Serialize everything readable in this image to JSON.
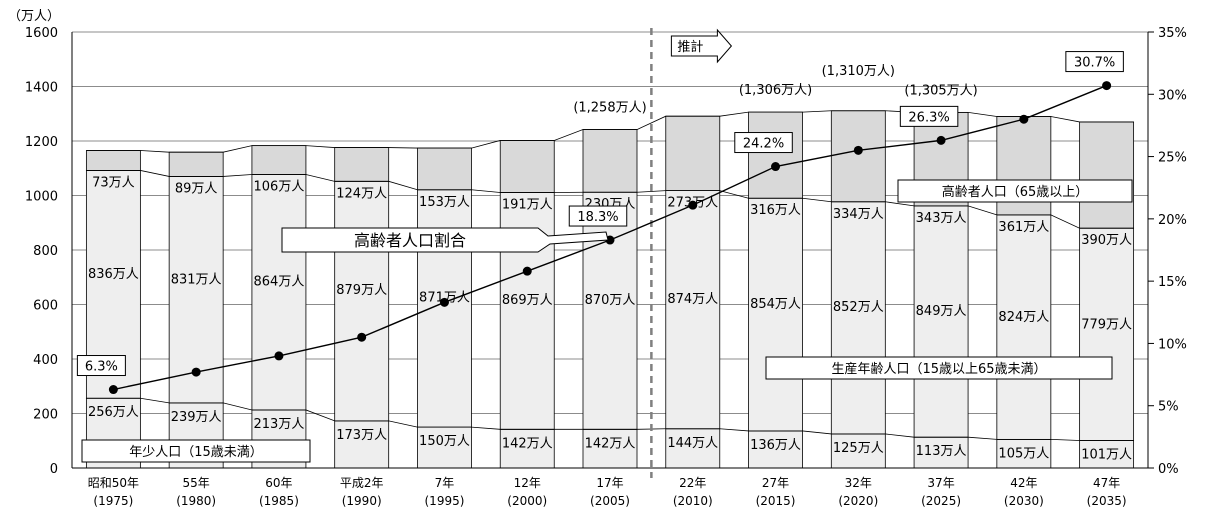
{
  "chart_data": {
    "type": "bar",
    "stacked": true,
    "y_unit_left": "（万人）",
    "ylim": [
      0,
      1600
    ],
    "yticks_left": [
      "0",
      "200",
      "400",
      "600",
      "800",
      "1000",
      "1200",
      "1400",
      "1600"
    ],
    "ylim_right": [
      0,
      35
    ],
    "yticks_right": [
      "0%",
      "5%",
      "10%",
      "15%",
      "20%",
      "25%",
      "30%",
      "35%"
    ],
    "grid": true,
    "categories": [
      {
        "era": "昭和50年",
        "year": "(1975)"
      },
      {
        "era": "55年",
        "year": "(1980)"
      },
      {
        "era": "60年",
        "year": "(1985)"
      },
      {
        "era": "平成2年",
        "year": "(1990)"
      },
      {
        "era": "7年",
        "year": "(1995)"
      },
      {
        "era": "12年",
        "year": "(2000)"
      },
      {
        "era": "17年",
        "year": "(2005)"
      },
      {
        "era": "22年",
        "year": "(2010)"
      },
      {
        "era": "27年",
        "year": "(2015)"
      },
      {
        "era": "32年",
        "year": "(2020)"
      },
      {
        "era": "37年",
        "year": "(2025)"
      },
      {
        "era": "42年",
        "year": "(2030)"
      },
      {
        "era": "47年",
        "year": "(2035)"
      }
    ],
    "series": [
      {
        "name": "年少人口（15歳未満）",
        "values": [
          256,
          239,
          213,
          173,
          150,
          142,
          142,
          144,
          136,
          125,
          113,
          105,
          101
        ],
        "labels": [
          "256万人",
          "239万人",
          "213万人",
          "173万人",
          "150万人",
          "142万人",
          "142万人",
          "144万人",
          "136万人",
          "125万人",
          "113万人",
          "105万人",
          "101万人"
        ]
      },
      {
        "name": "生産年齢人口（15歳以上65歳未満）",
        "values": [
          836,
          831,
          864,
          879,
          871,
          869,
          870,
          874,
          854,
          852,
          849,
          824,
          779
        ],
        "labels": [
          "836万人",
          "831万人",
          "864万人",
          "879万人",
          "871万人",
          "869万人",
          "870万人",
          "874万人",
          "854万人",
          "852万人",
          "849万人",
          "824万人",
          "779万人"
        ]
      },
      {
        "name": "高齢者人口（65歳以上）",
        "values": [
          73,
          89,
          106,
          124,
          153,
          191,
          230,
          273,
          316,
          334,
          343,
          361,
          390
        ],
        "labels": [
          "73万人",
          "89万人",
          "106万人",
          "124万人",
          "153万人",
          "191万人",
          "230万人",
          "273万人",
          "316万人",
          "334万人",
          "343万人",
          "361万人",
          "390万人"
        ]
      }
    ],
    "line": {
      "name": "高齢者人口割合",
      "values": [
        6.3,
        7.7,
        9.0,
        10.5,
        13.3,
        15.8,
        18.3,
        21.1,
        24.2,
        25.5,
        26.3,
        28.0,
        30.7
      ],
      "shown_labels": [
        {
          "index": 0,
          "text": "6.3%"
        },
        {
          "index": 6,
          "text": "18.3%"
        },
        {
          "index": 8,
          "text": "24.2%"
        },
        {
          "index": 10,
          "text": "26.3%"
        },
        {
          "index": 12,
          "text": "30.7%"
        }
      ]
    },
    "totals": [
      {
        "index": 6,
        "text": "(1,258万人)"
      },
      {
        "index": 8,
        "text": "(1,306万人)"
      },
      {
        "index": 9,
        "text": "(1,310万人)"
      },
      {
        "index": 10,
        "text": "(1,305万人)"
      }
    ],
    "projection_label": "推計",
    "projection_start_index": 7,
    "colors": {
      "bar_fill": "#eeeeee",
      "bar_top_fill": "#d9d9d9",
      "grid": "#8c8c8c",
      "line": "#000000",
      "dash": "#808080"
    }
  }
}
